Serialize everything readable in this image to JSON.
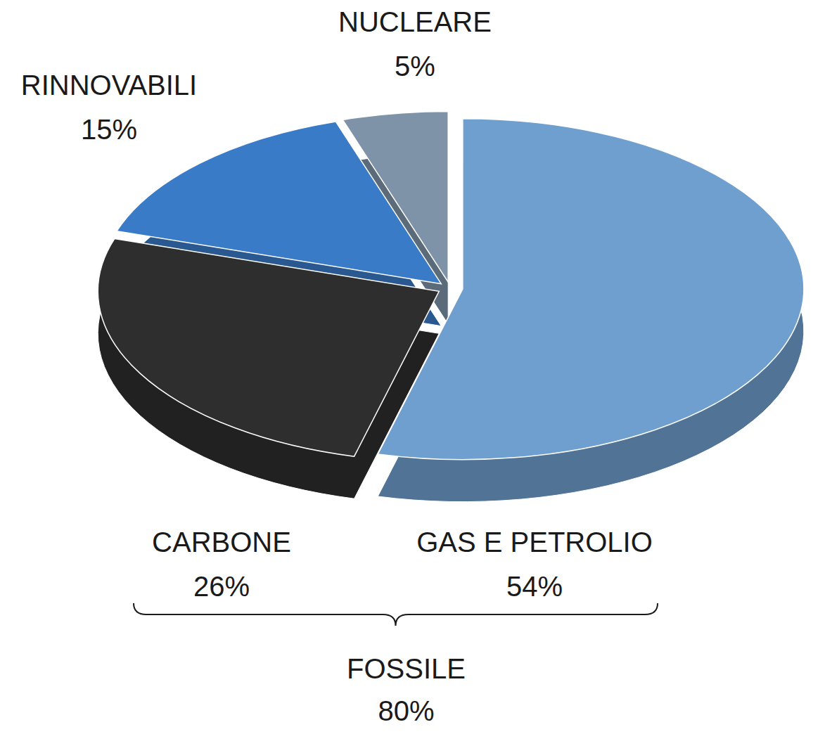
{
  "chart_data": {
    "type": "pie",
    "categories": [
      "GAS E PETROLIO",
      "CARBONE",
      "RINNOVABILI",
      "NUCLEARE"
    ],
    "values": [
      54,
      26,
      15,
      5
    ],
    "value_labels": [
      "54%",
      "26%",
      "15%",
      "5%"
    ],
    "colors": [
      "#6f9fcf",
      "#2e2e2e",
      "#3a7bc8",
      "#7f93a8"
    ],
    "data_labels": true,
    "annotations": [
      {
        "text": "FOSSILE",
        "value": 80,
        "value_label": "80%"
      }
    ]
  }
}
